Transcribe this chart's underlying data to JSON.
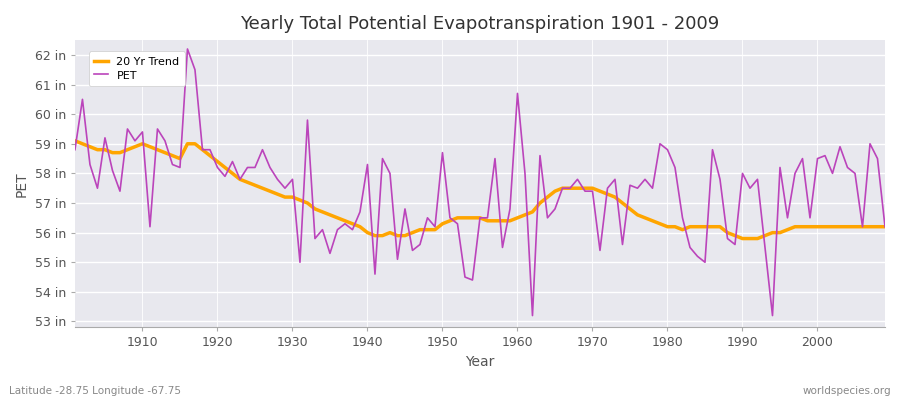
{
  "title": "Yearly Total Potential Evapotranspiration 1901 - 2009",
  "xlabel": "Year",
  "ylabel": "PET",
  "footnote_left": "Latitude -28.75 Longitude -67.75",
  "footnote_right": "worldspecies.org",
  "pet_color": "#BB44BB",
  "trend_color": "#FFA500",
  "bg_color": "#FFFFFF",
  "plot_bg_color": "#E8E8EE",
  "grid_color": "#FFFFFF",
  "ylim": [
    52.8,
    62.5
  ],
  "yticks": [
    53,
    54,
    55,
    56,
    57,
    58,
    59,
    60,
    61,
    62
  ],
  "ytick_labels": [
    "53 in",
    "54 in",
    "55 in",
    "56 in",
    "57 in",
    "58 in",
    "59 in",
    "60 in",
    "61 in",
    "62 in"
  ],
  "years": [
    1901,
    1902,
    1903,
    1904,
    1905,
    1906,
    1907,
    1908,
    1909,
    1910,
    1911,
    1912,
    1913,
    1914,
    1915,
    1916,
    1917,
    1918,
    1919,
    1920,
    1921,
    1922,
    1923,
    1924,
    1925,
    1926,
    1927,
    1928,
    1929,
    1930,
    1931,
    1932,
    1933,
    1934,
    1935,
    1936,
    1937,
    1938,
    1939,
    1940,
    1941,
    1942,
    1943,
    1944,
    1945,
    1946,
    1947,
    1948,
    1949,
    1950,
    1951,
    1952,
    1953,
    1954,
    1955,
    1956,
    1957,
    1958,
    1959,
    1960,
    1961,
    1962,
    1963,
    1964,
    1965,
    1966,
    1967,
    1968,
    1969,
    1970,
    1971,
    1972,
    1973,
    1974,
    1975,
    1976,
    1977,
    1978,
    1979,
    1980,
    1981,
    1982,
    1983,
    1984,
    1985,
    1986,
    1987,
    1988,
    1989,
    1990,
    1991,
    1992,
    1993,
    1994,
    1995,
    1996,
    1997,
    1998,
    1999,
    2000,
    2001,
    2002,
    2003,
    2004,
    2005,
    2006,
    2007,
    2008,
    2009
  ],
  "pet": [
    58.8,
    60.5,
    58.3,
    57.5,
    59.2,
    58.1,
    57.4,
    59.5,
    59.1,
    59.4,
    56.2,
    59.5,
    59.1,
    58.3,
    58.2,
    62.2,
    61.5,
    58.8,
    58.8,
    58.2,
    57.9,
    58.4,
    57.8,
    58.2,
    58.2,
    58.8,
    58.2,
    57.8,
    57.5,
    57.8,
    55.0,
    59.8,
    55.8,
    56.1,
    55.3,
    56.1,
    56.3,
    56.1,
    56.7,
    58.3,
    54.6,
    58.5,
    58.0,
    55.1,
    56.8,
    55.4,
    55.6,
    56.5,
    56.2,
    58.7,
    56.5,
    56.3,
    54.5,
    54.4,
    56.5,
    56.5,
    58.5,
    55.5,
    56.8,
    60.7,
    58.0,
    53.2,
    58.6,
    56.5,
    56.8,
    57.5,
    57.5,
    57.8,
    57.4,
    57.4,
    55.4,
    57.5,
    57.8,
    55.6,
    57.6,
    57.5,
    57.8,
    57.5,
    59.0,
    58.8,
    58.2,
    56.5,
    55.5,
    55.2,
    55.0,
    58.8,
    57.8,
    55.8,
    55.6,
    58.0,
    57.5,
    57.8,
    55.5,
    53.2,
    58.2,
    56.5,
    58.0,
    58.5,
    56.5,
    58.5,
    58.6,
    58.0,
    58.9,
    58.2,
    58.0,
    56.2,
    59.0,
    58.5,
    56.2
  ],
  "trend": [
    59.1,
    59.0,
    58.9,
    58.8,
    58.8,
    58.7,
    58.7,
    58.8,
    58.9,
    59.0,
    58.9,
    58.8,
    58.7,
    58.6,
    58.5,
    59.0,
    59.0,
    58.8,
    58.6,
    58.4,
    58.2,
    58.0,
    57.8,
    57.7,
    57.6,
    57.5,
    57.4,
    57.3,
    57.2,
    57.2,
    57.1,
    57.0,
    56.8,
    56.7,
    56.6,
    56.5,
    56.4,
    56.3,
    56.2,
    56.0,
    55.9,
    55.9,
    56.0,
    55.9,
    55.9,
    56.0,
    56.1,
    56.1,
    56.1,
    56.3,
    56.4,
    56.5,
    56.5,
    56.5,
    56.5,
    56.4,
    56.4,
    56.4,
    56.4,
    56.5,
    56.6,
    56.7,
    57.0,
    57.2,
    57.4,
    57.5,
    57.5,
    57.5,
    57.5,
    57.5,
    57.4,
    57.3,
    57.2,
    57.0,
    56.8,
    56.6,
    56.5,
    56.4,
    56.3,
    56.2,
    56.2,
    56.1,
    56.2,
    56.2,
    56.2,
    56.2,
    56.2,
    56.0,
    55.9,
    55.8,
    55.8,
    55.8,
    55.9,
    56.0,
    56.0,
    56.1,
    56.2,
    56.2,
    56.2,
    56.2,
    56.2,
    56.2,
    56.2,
    56.2,
    56.2,
    56.2,
    56.2,
    56.2,
    56.2
  ]
}
